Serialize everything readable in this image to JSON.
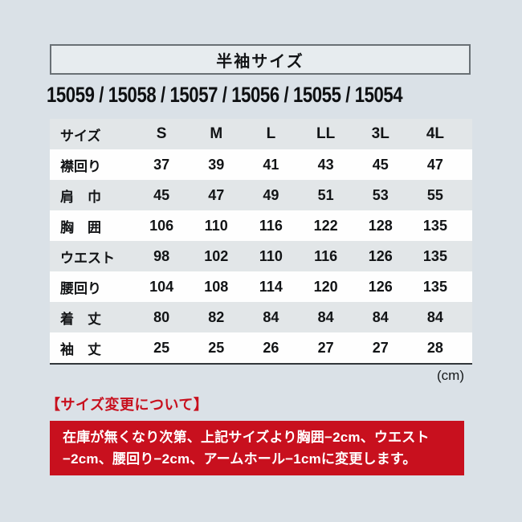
{
  "page": {
    "background_color": "#dae1e7",
    "accent_red": "#c8101e",
    "row_gray": "#e2e6e8",
    "row_white": "#fefefe"
  },
  "header": {
    "title": "半袖サイズ",
    "product_codes": "15059 / 15058 / 15057 / 15056 / 15055 / 15054"
  },
  "size_table": {
    "unit_note": "(cm)",
    "columns": [
      "サイズ",
      "S",
      "M",
      "L",
      "LL",
      "3L",
      "4L"
    ],
    "rows": [
      {
        "label": "襟回り",
        "values": [
          37,
          39,
          41,
          43,
          45,
          47
        ]
      },
      {
        "label": "肩　巾",
        "values": [
          45,
          47,
          49,
          51,
          53,
          55
        ]
      },
      {
        "label": "胸　囲",
        "values": [
          106,
          110,
          116,
          122,
          128,
          135
        ]
      },
      {
        "label": "ウエスト",
        "values": [
          98,
          102,
          110,
          116,
          126,
          135
        ]
      },
      {
        "label": "腰回り",
        "values": [
          104,
          108,
          114,
          120,
          126,
          135
        ]
      },
      {
        "label": "着　丈",
        "values": [
          80,
          82,
          84,
          84,
          84,
          84
        ]
      },
      {
        "label": "袖　丈",
        "values": [
          25,
          25,
          26,
          27,
          27,
          28
        ]
      }
    ]
  },
  "notice": {
    "heading": "【サイズ変更について】",
    "body_line1": "在庫が無くなり次第、上記サイズより胸囲−2cm、ウエスト",
    "body_line2": "−2cm、腰回り−2cm、アームホール−1cmに変更します。"
  }
}
